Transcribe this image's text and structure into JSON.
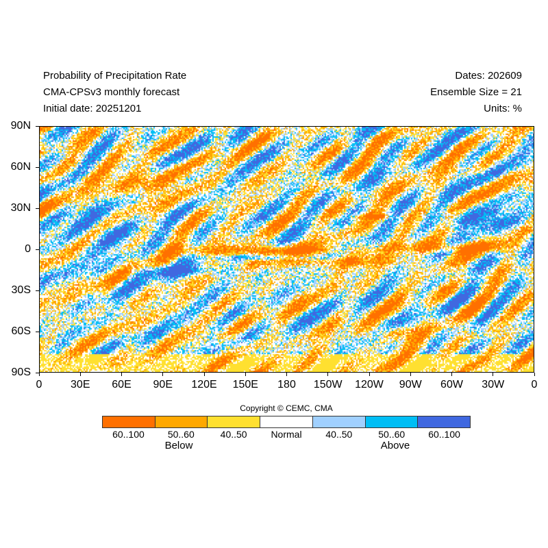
{
  "header": {
    "title": "Probability of Precipitation Rate",
    "model": "CMA-CPSv3 monthly forecast",
    "initial_date": "Initial date: 20251201",
    "dates": "Dates: 202609",
    "ensemble": "Ensemble Size = 21",
    "units": "Units: %"
  },
  "chart_data": {
    "type": "heatmap",
    "title": "Probability of Precipitation Rate",
    "x_ticks": [
      "0",
      "30E",
      "60E",
      "90E",
      "120E",
      "150E",
      "180",
      "150W",
      "120W",
      "90W",
      "60W",
      "30W",
      "0"
    ],
    "y_ticks": [
      "90N",
      "60N",
      "30N",
      "0",
      "30S",
      "60S",
      "90S"
    ],
    "xlim": [
      0,
      360
    ],
    "ylim": [
      -90,
      90
    ]
  },
  "legend": {
    "copyright": "Copyright © CEMC, CMA",
    "categories": [
      {
        "label": "60..100",
        "color": "#ff7000"
      },
      {
        "label": "50..60",
        "color": "#ffa800"
      },
      {
        "label": "40..50",
        "color": "#ffe030"
      },
      {
        "label": "Normal",
        "color": "#ffffff"
      },
      {
        "label": "40..50",
        "color": "#a0d0ff"
      },
      {
        "label": "50..60",
        "color": "#00bef5"
      },
      {
        "label": "60..100",
        "color": "#4068e0"
      }
    ],
    "below_label": "Below",
    "above_label": "Above"
  }
}
